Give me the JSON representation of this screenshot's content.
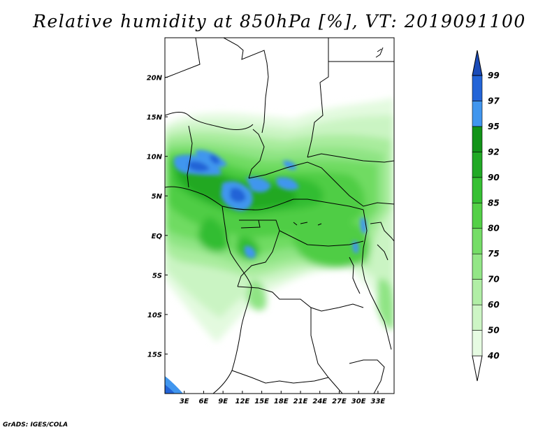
{
  "title": "Relative humidity at 850hPa [%], VT: 2019091100",
  "credit": "GrADS: IGES/COLA",
  "chart_data": {
    "type": "heatmap",
    "title": "Relative humidity at 850hPa [%], VT: 2019091100",
    "lon_range": [
      0,
      35.5
    ],
    "lat_range": [
      -20,
      25
    ],
    "x_ticks": [
      3,
      6,
      9,
      12,
      15,
      18,
      21,
      24,
      27,
      30,
      33
    ],
    "x_tick_labels": [
      "3E",
      "6E",
      "9E",
      "12E",
      "15E",
      "18E",
      "21E",
      "24E",
      "27E",
      "30E",
      "33E"
    ],
    "y_ticks": [
      20,
      15,
      10,
      5,
      0,
      -5,
      -10,
      -15
    ],
    "y_tick_labels": [
      "20N",
      "15N",
      "10N",
      "5N",
      "EQ",
      "5S",
      "10S",
      "15S"
    ],
    "colorbar": {
      "levels": [
        40,
        50,
        60,
        70,
        75,
        80,
        85,
        90,
        92,
        95,
        97,
        99
      ],
      "labels": [
        "40",
        "50",
        "60",
        "70",
        "75",
        "80",
        "85",
        "90",
        "92",
        "95",
        "97",
        "99"
      ],
      "colors": [
        "#ffffff",
        "#e6fbe2",
        "#cdf5c5",
        "#b1eea6",
        "#93e687",
        "#75dd67",
        "#54d047",
        "#36c033",
        "#21a925",
        "#129318",
        "#4196ee",
        "#2364d7",
        "#1a4bb8"
      ]
    }
  }
}
